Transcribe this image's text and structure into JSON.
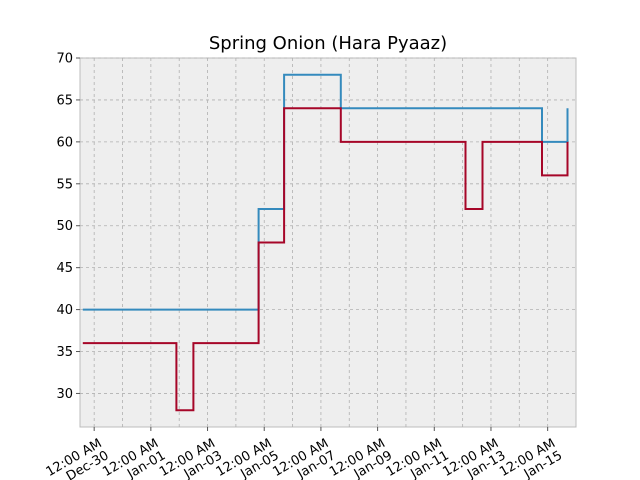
{
  "chart_data": {
    "type": "line",
    "step": "post",
    "title": "Spring Onion (Hara Pyaaz)",
    "xlabel": "",
    "ylabel": "",
    "grid": true,
    "ylim": [
      26,
      70
    ],
    "y_ticks": [
      30,
      35,
      40,
      45,
      50,
      55,
      60,
      65,
      70
    ],
    "xlim": [
      "2023-12-29T12:00",
      "2024-01-16T00:00"
    ],
    "x_tick_labels": [
      {
        "at": "2023-12-30T00:00",
        "line1": "12:00 AM",
        "line2": "Dec-30"
      },
      {
        "at": "2024-01-01T00:00",
        "line1": "12:00 AM",
        "line2": "Jan-01"
      },
      {
        "at": "2024-01-03T00:00",
        "line1": "12:00 AM",
        "line2": "Jan-03"
      },
      {
        "at": "2024-01-05T00:00",
        "line1": "12:00 AM",
        "line2": "Jan-05"
      },
      {
        "at": "2024-01-07T00:00",
        "line1": "12:00 AM",
        "line2": "Jan-07"
      },
      {
        "at": "2024-01-09T00:00",
        "line1": "12:00 AM",
        "line2": "Jan-09"
      },
      {
        "at": "2024-01-11T00:00",
        "line1": "12:00 AM",
        "line2": "Jan-11"
      },
      {
        "at": "2024-01-13T00:00",
        "line1": "12:00 AM",
        "line2": "Jan-13"
      },
      {
        "at": "2024-01-15T00:00",
        "line1": "12:00 AM",
        "line2": "Jan-15"
      }
    ],
    "x_extra_ticks": [
      "2023-12-31T00:00",
      "2024-01-02T00:00",
      "2024-01-04T00:00",
      "2024-01-06T00:00",
      "2024-01-08T00:00",
      "2024-01-10T00:00",
      "2024-01-12T00:00",
      "2024-01-14T00:00"
    ],
    "series": [
      {
        "color": "#348abd",
        "points": [
          {
            "x": "2023-12-29T14:24",
            "y": 40
          },
          {
            "x": "2024-01-04T19:12",
            "y": 52
          },
          {
            "x": "2024-01-05T16:48",
            "y": 68
          },
          {
            "x": "2024-01-07T16:48",
            "y": 64
          },
          {
            "x": "2024-01-14T19:12",
            "y": 60
          },
          {
            "x": "2024-01-15T16:48",
            "y": 64
          }
        ]
      },
      {
        "color": "#a60628",
        "points": [
          {
            "x": "2023-12-29T14:24",
            "y": 36
          },
          {
            "x": "2024-01-01T21:36",
            "y": 28
          },
          {
            "x": "2024-01-02T12:00",
            "y": 36
          },
          {
            "x": "2024-01-04T19:12",
            "y": 48
          },
          {
            "x": "2024-01-05T16:48",
            "y": 64
          },
          {
            "x": "2024-01-07T16:48",
            "y": 60
          },
          {
            "x": "2024-01-12T02:24",
            "y": 52
          },
          {
            "x": "2024-01-12T16:48",
            "y": 60
          },
          {
            "x": "2024-01-14T19:12",
            "y": 56
          },
          {
            "x": "2024-01-15T16:48",
            "y": 60
          }
        ]
      }
    ]
  }
}
